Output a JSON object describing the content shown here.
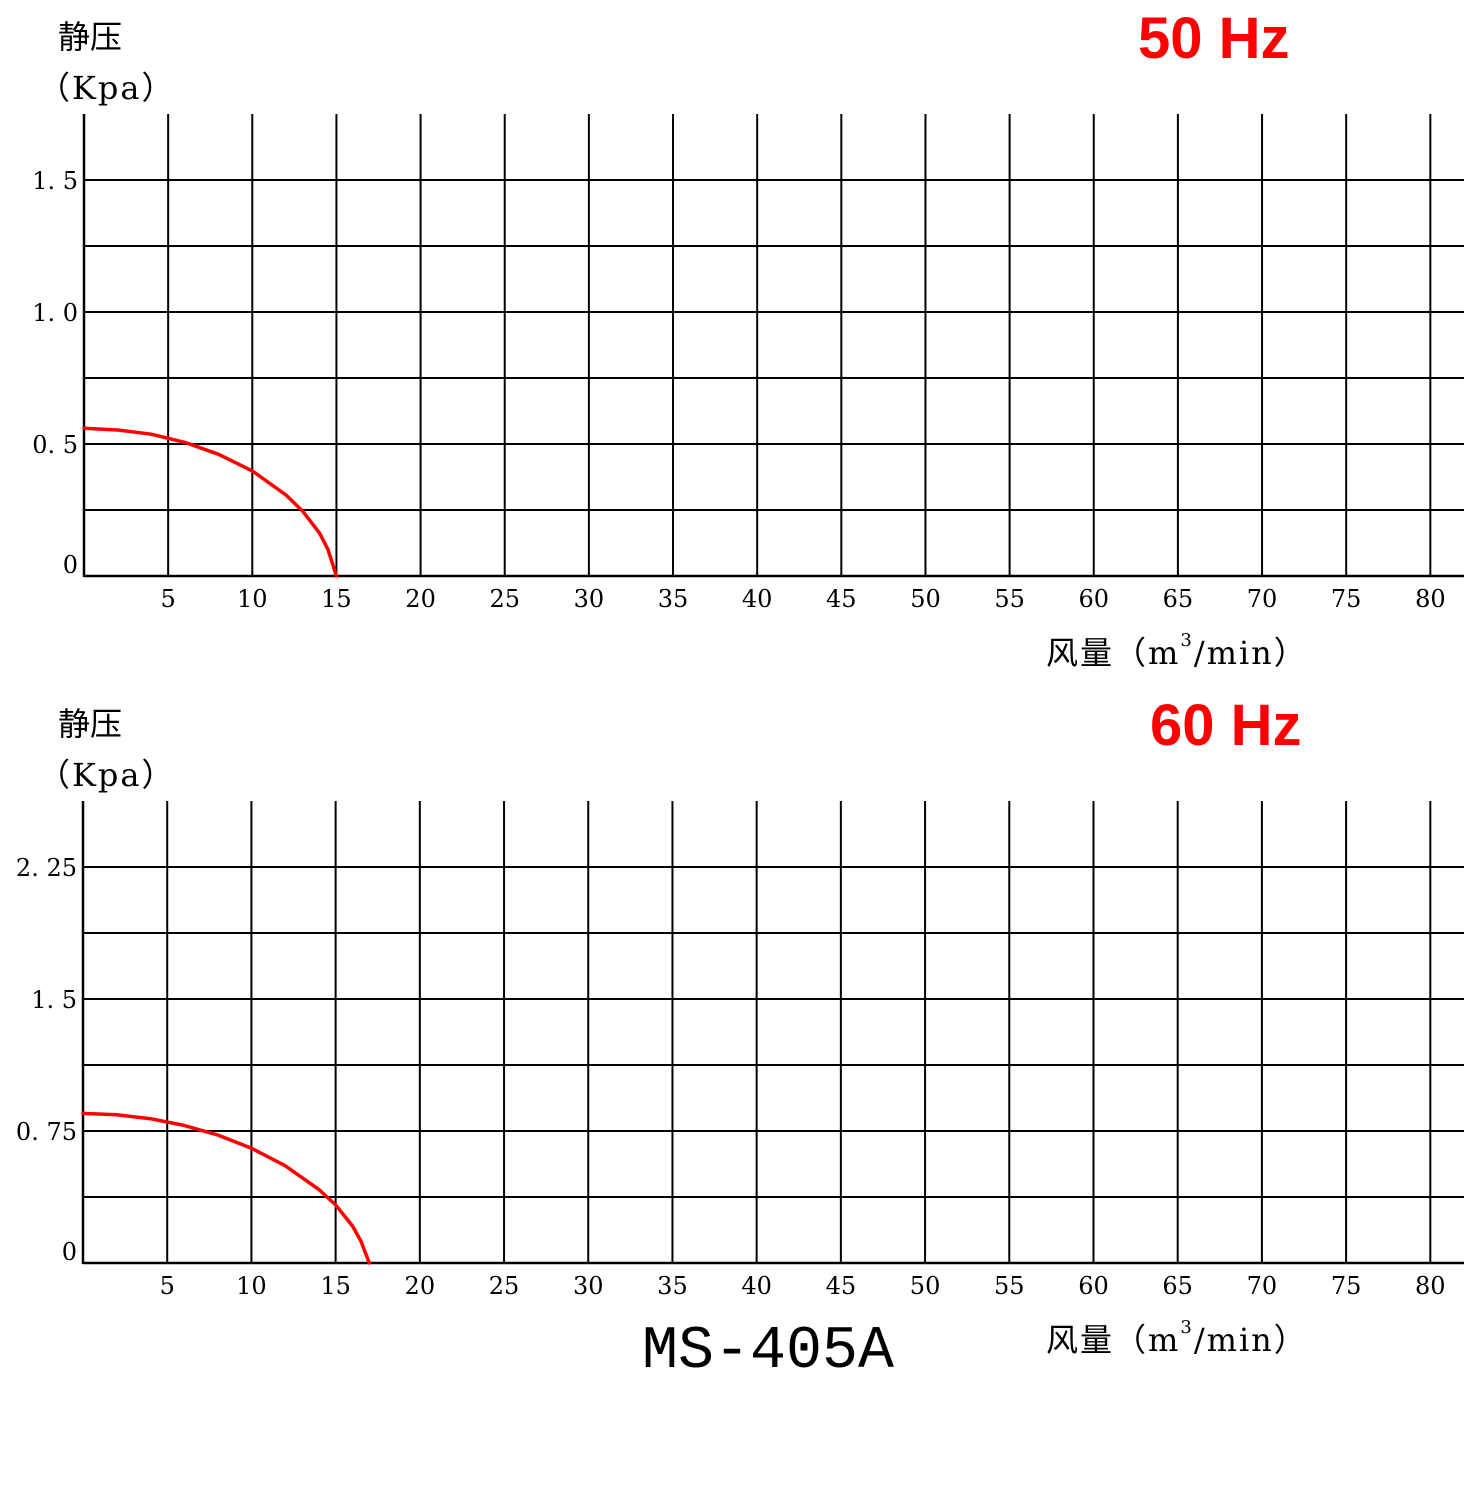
{
  "model": "MS-405A",
  "colors": {
    "curve": "#ff0000",
    "grid": "#000000",
    "text": "#000000"
  },
  "chart_data": [
    {
      "type": "line",
      "title": "50 Hz",
      "ylabel": "静压",
      "ylabel_unit": "（Kpa）",
      "xlabel": "风量（m",
      "xlabel_sup": "3",
      "xlabel_tail": "/min）",
      "xlim": [
        0,
        82
      ],
      "ylim": [
        0,
        1.75
      ],
      "xticks": [
        5,
        10,
        15,
        20,
        25,
        30,
        35,
        40,
        45,
        50,
        55,
        60,
        65,
        70,
        75,
        80
      ],
      "xtick_labels": [
        "5",
        "10",
        "15",
        "20",
        "25",
        "30",
        "35",
        "40",
        "45",
        "50",
        "55",
        "60",
        "65",
        "70",
        "75",
        "80"
      ],
      "yticks": [
        0,
        0.5,
        1.0,
        1.5
      ],
      "ytick_labels": [
        "0",
        "0. 5",
        "1. 0",
        "1. 5"
      ],
      "hgrid": [
        0.25,
        0.5,
        0.75,
        1.0,
        1.25,
        1.5
      ],
      "grid": true,
      "series": [
        {
          "color": "#ff0000",
          "x": [
            0,
            2,
            4,
            6,
            8,
            10,
            12,
            13,
            14,
            14.5,
            15
          ],
          "y": [
            0.56,
            0.553,
            0.537,
            0.506,
            0.461,
            0.398,
            0.307,
            0.245,
            0.162,
            0.1,
            0.0
          ]
        }
      ]
    },
    {
      "type": "line",
      "title": "60 Hz",
      "ylabel": "静压",
      "ylabel_unit": "（Kpa）",
      "xlabel": "风量（m",
      "xlabel_sup": "3",
      "xlabel_tail": "/min）",
      "xlim": [
        0,
        82
      ],
      "ylim": [
        0,
        2.625
      ],
      "xticks": [
        5,
        10,
        15,
        20,
        25,
        30,
        35,
        40,
        45,
        50,
        55,
        60,
        65,
        70,
        75,
        80
      ],
      "xtick_labels": [
        "5",
        "10",
        "15",
        "20",
        "25",
        "30",
        "35",
        "40",
        "45",
        "50",
        "55",
        "60",
        "65",
        "70",
        "75",
        "80"
      ],
      "yticks": [
        0,
        0.75,
        1.5,
        2.25
      ],
      "ytick_labels": [
        "0",
        "0. 75",
        "1. 5",
        "2. 25"
      ],
      "hgrid": [
        0.375,
        0.75,
        1.125,
        1.5,
        1.875,
        2.25
      ],
      "grid": true,
      "series": [
        {
          "color": "#ff0000",
          "x": [
            0,
            2,
            4,
            6,
            8,
            10,
            12,
            14,
            15,
            16,
            16.5,
            17
          ],
          "y": [
            0.85,
            0.842,
            0.82,
            0.782,
            0.727,
            0.652,
            0.553,
            0.418,
            0.33,
            0.21,
            0.125,
            0.0
          ]
        }
      ]
    }
  ]
}
